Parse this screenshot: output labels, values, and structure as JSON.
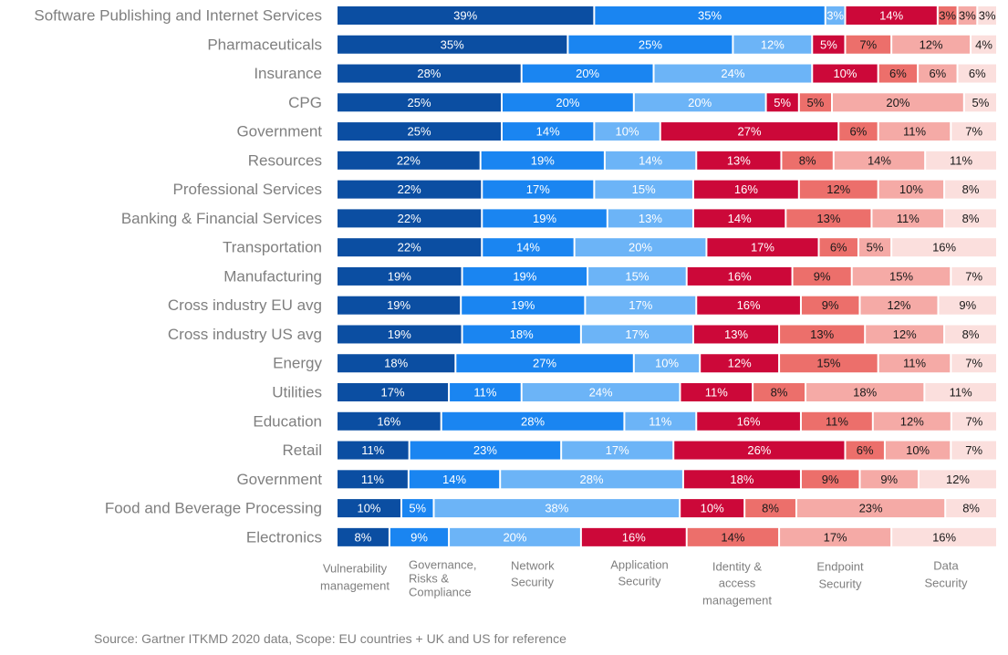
{
  "chart_data": {
    "type": "bar",
    "orientation": "horizontal",
    "stacked": true,
    "categories": [
      "Software Publishing and Internet Services",
      "Pharmaceuticals",
      "Insurance",
      "CPG",
      "Government",
      "Resources",
      "Professional Services",
      "Banking & Financial Services",
      "Transportation",
      "Manufacturing",
      "Cross industry EU avg",
      "Cross industry US avg",
      "Energy",
      "Utilities",
      "Education",
      "Retail",
      "Government",
      "Food and Beverage Processing",
      "Electronics"
    ],
    "series": [
      {
        "name": "Vulnerability management",
        "color": "#0b4ea2",
        "label_color": "#ffffff",
        "values": [
          39,
          35,
          28,
          25,
          25,
          22,
          22,
          22,
          22,
          19,
          19,
          19,
          18,
          17,
          16,
          11,
          11,
          10,
          8
        ]
      },
      {
        "name": "Governance, Risks & Compliance",
        "color": "#1a85f1",
        "label_color": "#ffffff",
        "values": [
          35,
          25,
          20,
          20,
          14,
          19,
          17,
          19,
          14,
          19,
          19,
          18,
          27,
          11,
          28,
          23,
          14,
          5,
          9
        ]
      },
      {
        "name": "Network Security",
        "color": "#6cb4f7",
        "label_color": "#ffffff",
        "values": [
          3,
          12,
          24,
          20,
          10,
          14,
          15,
          13,
          20,
          15,
          17,
          17,
          10,
          24,
          11,
          17,
          28,
          38,
          20
        ]
      },
      {
        "name": "Application Security",
        "color": "#cc0839",
        "label_color": "#ffffff",
        "values": [
          14,
          5,
          10,
          5,
          27,
          13,
          16,
          14,
          17,
          16,
          16,
          13,
          12,
          11,
          16,
          26,
          18,
          10,
          16
        ]
      },
      {
        "name": "Identity & access management",
        "color": "#ec6f6b",
        "label_color": "#1a1a1a",
        "values": [
          3,
          7,
          6,
          5,
          6,
          8,
          12,
          13,
          6,
          9,
          9,
          13,
          15,
          8,
          11,
          6,
          9,
          8,
          14
        ]
      },
      {
        "name": "Endpoint Security",
        "color": "#f5aaa6",
        "label_color": "#1a1a1a",
        "values": [
          3,
          12,
          6,
          20,
          11,
          14,
          10,
          11,
          5,
          15,
          12,
          12,
          11,
          18,
          12,
          10,
          9,
          23,
          17
        ]
      },
      {
        "name": "Data Security",
        "color": "#fbdfdd",
        "label_color": "#1a1a1a",
        "values": [
          3,
          4,
          6,
          5,
          7,
          11,
          8,
          8,
          16,
          7,
          9,
          8,
          7,
          11,
          7,
          7,
          12,
          8,
          16
        ]
      }
    ],
    "value_suffix": "%",
    "legend_placement": "bottom",
    "grid": false
  },
  "legend_lines": [
    [
      "Vulnerability",
      "management"
    ],
    [
      "Governance,",
      "Risks &",
      "Compliance"
    ],
    [
      "Network",
      "Security"
    ],
    [
      "Application",
      "Security"
    ],
    [
      "Identity &",
      "access",
      "management"
    ],
    [
      "Endpoint",
      "Security"
    ],
    [
      "Data",
      "Security"
    ]
  ],
  "source_note": "Source: Gartner ITKMD 2020 data, Scope: EU countries + UK and US for reference"
}
